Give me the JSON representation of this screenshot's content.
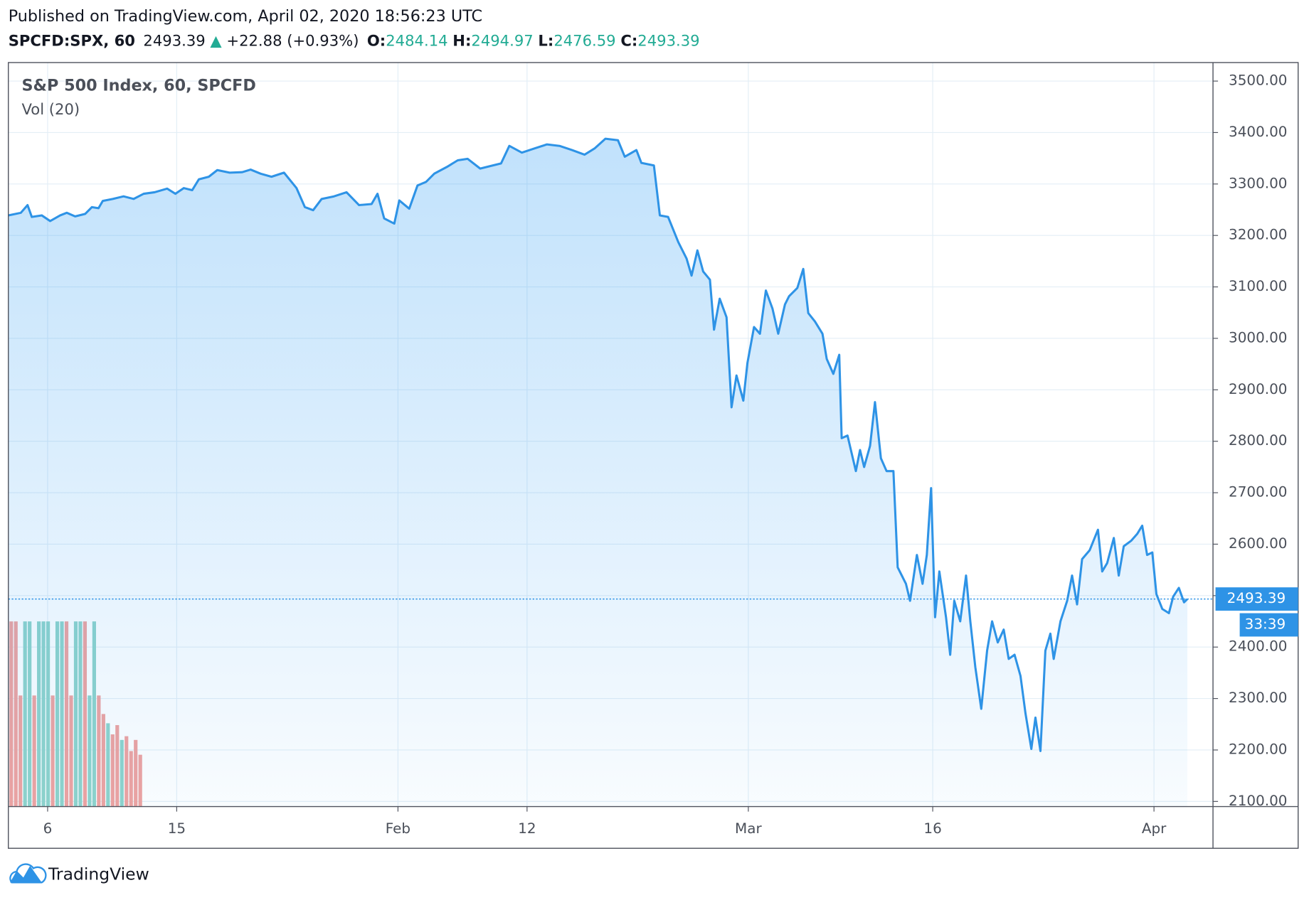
{
  "header": {
    "published": "Published on TradingView.com, April 02, 2020 18:56:23 UTC",
    "symbol": "SPCFD:SPX, 60",
    "last": 2493.39,
    "arrow": "▲",
    "change": "+22.88 (+0.93%)",
    "o_label": "O:",
    "open": 2484.14,
    "h_label": "H:",
    "high": 2494.97,
    "l_label": "L:",
    "low": 2476.59,
    "c_label": "C:",
    "close": 2493.39,
    "countdown": "33:39",
    "brand": "TradingView"
  },
  "chart_data": {
    "type": "area",
    "title": "S&P 500 Index, 60, SPCFD",
    "color": "#2e93e6",
    "grid": true,
    "x": [
      -0.13,
      0.55,
      0.91,
      1.14,
      1.68,
      2.14,
      2.68,
      3.04,
      3.49,
      4.04,
      4.4,
      4.76,
      4.99,
      5.53,
      6.12,
      6.66,
      7.21,
      7.8,
      8.48,
      8.93,
      9.38,
      9.84,
      10.2,
      10.74,
      11.2,
      11.87,
      12.55,
      13.01,
      13.55,
      14.14,
      14.82,
      15.5,
      15.95,
      16.4,
      16.86,
      17.53,
      18.21,
      18.89,
      19.57,
      19.89,
      20.25,
      20.8,
      21.07,
      21.61,
      22.06,
      22.52,
      22.97,
      23.65,
      24.24,
      24.78,
      25.46,
      26.14,
      26.59,
      27.04,
      27.72,
      28.4,
      29.08,
      29.76,
      30.44,
      31.12,
      31.66,
      32.25,
      32.93,
      33.3,
      33.93,
      34.2,
      34.88,
      35.2,
      35.65,
      36.2,
      36.65,
      36.92,
      37.24,
      37.55,
      37.92,
      38.14,
      38.45,
      38.82,
      39.09,
      39.36,
      39.73,
      39.95,
      40.31,
      40.63,
      40.95,
      41.31,
      41.62,
      41.99,
      42.21,
      42.66,
      42.98,
      43.25,
      43.61,
      44.02,
      44.25,
      44.61,
      44.93,
      45.06,
      45.38,
      45.83,
      46.06,
      46.28,
      46.6,
      46.87,
      47.19,
      47.5,
      47.87,
      48.1,
      48.55,
      48.77,
      49.14,
      49.45,
      49.68,
      49.91,
      50.13,
      50.36,
      50.72,
      50.95,
      51.17,
      51.49,
      51.81,
      52.04,
      52.31,
      52.63,
      52.95,
      53.22,
      53.53,
      53.85,
      54.12,
      54.44,
      54.76,
      55.03,
      55.35,
      55.57,
      55.84,
      56.11,
      56.38,
      56.56,
      56.93,
      57.29,
      57.56,
      57.83,
      58.1,
      58.51,
      58.96,
      59.19,
      59.46,
      59.82,
      60.09,
      60.36,
      60.77,
      61.09,
      61.36,
      61.63,
      61.91,
      62.13,
      62.45,
      62.81,
      63.04,
      63.35,
      63.63,
      63.81
    ],
    "values": [
      3239,
      3244,
      3259,
      3236,
      3239,
      3228,
      3239,
      3244,
      3237,
      3242,
      3255,
      3253,
      3267,
      3271,
      3276,
      3271,
      3281,
      3284,
      3291,
      3281,
      3292,
      3288,
      3309,
      3314,
      3327,
      3322,
      3323,
      3328,
      3320,
      3314,
      3322,
      3292,
      3255,
      3249,
      3271,
      3276,
      3284,
      3259,
      3261,
      3281,
      3233,
      3223,
      3268,
      3252,
      3297,
      3304,
      3320,
      3333,
      3346,
      3349,
      3330,
      3336,
      3340,
      3374,
      3361,
      3369,
      3377,
      3374,
      3366,
      3357,
      3369,
      3388,
      3385,
      3353,
      3366,
      3341,
      3336,
      3239,
      3236,
      3187,
      3155,
      3122,
      3171,
      3130,
      3114,
      3017,
      3077,
      3041,
      2866,
      2928,
      2879,
      2952,
      3022,
      3009,
      3093,
      3058,
      3009,
      3066,
      3082,
      3098,
      3135,
      3049,
      3033,
      3009,
      2960,
      2931,
      2968,
      2806,
      2811,
      2742,
      2783,
      2750,
      2791,
      2876,
      2767,
      2742,
      2742,
      2555,
      2523,
      2490,
      2579,
      2523,
      2579,
      2709,
      2458,
      2547,
      2458,
      2385,
      2490,
      2450,
      2539,
      2450,
      2361,
      2280,
      2393,
      2450,
      2409,
      2434,
      2377,
      2385,
      2344,
      2271,
      2202,
      2263,
      2198,
      2393,
      2426,
      2377,
      2450,
      2490,
      2539,
      2483,
      2571,
      2588,
      2628,
      2547,
      2563,
      2612,
      2539,
      2596,
      2607,
      2620,
      2636,
      2579,
      2584,
      2503,
      2474,
      2466,
      2498,
      2515,
      2487,
      2493.39
    ],
    "xlim": [
      -0.13,
      65.2
    ],
    "ylim": [
      2090,
      3536
    ],
    "xticks": [
      {
        "value": 2,
        "label": "6"
      },
      {
        "value": 9,
        "label": "15"
      },
      {
        "value": 21,
        "label": "Feb"
      },
      {
        "value": 28,
        "label": "12"
      },
      {
        "value": 40,
        "label": "Mar"
      },
      {
        "value": 50,
        "label": "16"
      },
      {
        "value": 62,
        "label": "Apr"
      }
    ],
    "yticks": [
      {
        "value": 2100,
        "label": "2100.00"
      },
      {
        "value": 2200,
        "label": "2200.00"
      },
      {
        "value": 2300,
        "label": "2300.00"
      },
      {
        "value": 2400,
        "label": "2400.00"
      },
      {
        "value": 2500,
        "label": "2500.00"
      },
      {
        "value": 2600,
        "label": "2600.00"
      },
      {
        "value": 2700,
        "label": "2700.00"
      },
      {
        "value": 2800,
        "label": "2800.00"
      },
      {
        "value": 2900,
        "label": "2900.00"
      },
      {
        "value": 3000,
        "label": "3000.00"
      },
      {
        "value": 3100,
        "label": "3100.00"
      },
      {
        "value": 3200,
        "label": "3200.00"
      },
      {
        "value": 3300,
        "label": "3300.00"
      },
      {
        "value": 3400,
        "label": "3400.00"
      },
      {
        "value": 3500,
        "label": "3500.00"
      }
    ],
    "volume": {
      "name": "Vol (20)",
      "x": [
        0.05,
        0.3,
        0.55,
        0.8,
        1.05,
        1.3,
        1.55,
        1.8,
        2.05,
        2.3,
        2.55,
        2.8,
        3.05,
        3.3,
        3.55,
        3.8,
        4.05,
        4.3,
        4.55,
        4.8,
        5.05,
        5.3,
        5.55,
        5.8,
        6.05,
        6.3,
        6.55,
        6.8,
        7.05
      ],
      "values": [
        100,
        100,
        60,
        100,
        100,
        60,
        100,
        100,
        100,
        60,
        100,
        100,
        100,
        60,
        100,
        100,
        100,
        60,
        100,
        60,
        50,
        45,
        39,
        44,
        36,
        38,
        30,
        36,
        28
      ],
      "colors": [
        "#efa3a0",
        "#efa3a0",
        "#efa3a0",
        "#8fd3cb",
        "#8fd3cb",
        "#efa3a0",
        "#8fd3cb",
        "#8fd3cb",
        "#8fd3cb",
        "#efa3a0",
        "#8fd3cb",
        "#8fd3cb",
        "#efa3a0",
        "#efa3a0",
        "#8fd3cb",
        "#8fd3cb",
        "#efa3a0",
        "#8fd3cb",
        "#8fd3cb",
        "#efa3a0",
        "#efa3a0",
        "#8fd3cb",
        "#efa3a0",
        "#efa3a0",
        "#8fd3cb",
        "#efa3a0",
        "#efa3a0",
        "#efa3a0",
        "#efa3a0"
      ]
    }
  }
}
